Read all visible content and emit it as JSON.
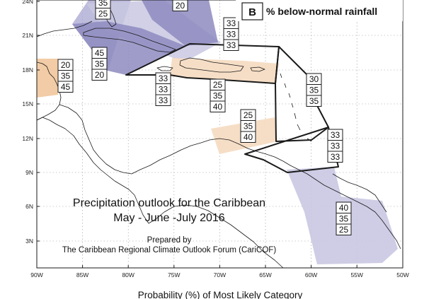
{
  "title": {
    "line1": "Precipitation outlook for the Caribbean",
    "line2": "May - June -July 2016"
  },
  "credit": {
    "line1": "Prepared by",
    "line2": "The Caribbean Regional Climate Outlook Forum (CariCOF)"
  },
  "legend": {
    "key": "B",
    "text": "% below-normal rainfall"
  },
  "bottom_label": "Probability (%) of Most Likely Category",
  "x_ticks": [
    "90W",
    "85W",
    "80W",
    "75W",
    "70W",
    "65W",
    "60W",
    "55W",
    "50W"
  ],
  "y_ticks": [
    "24N",
    "21N",
    "18N",
    "15N",
    "12N",
    "9N",
    "6N",
    "3N"
  ],
  "regions": [
    {
      "name": "region-gulf-yucatan",
      "values": [
        "35",
        "25"
      ]
    },
    {
      "name": "region-bahamas",
      "values": [
        "20"
      ]
    },
    {
      "name": "region-belize",
      "values": [
        "20",
        "35",
        "45"
      ]
    },
    {
      "name": "region-cuba-west",
      "values": [
        "45",
        "35",
        "20"
      ]
    },
    {
      "name": "region-jamaica",
      "values": [
        "33",
        "33",
        "33"
      ]
    },
    {
      "name": "region-north-antilles",
      "values": [
        "33",
        "33",
        "33"
      ]
    },
    {
      "name": "region-caribbean-sea",
      "values": [
        "25",
        "35",
        "40"
      ]
    },
    {
      "name": "region-leeward-islands",
      "values": [
        "30",
        "35",
        "35"
      ]
    },
    {
      "name": "region-south-caribbean",
      "values": [
        "25",
        "35",
        "40"
      ]
    },
    {
      "name": "region-trinidad",
      "values": [
        "33",
        "33",
        "33"
      ]
    },
    {
      "name": "region-guianas",
      "values": [
        "40",
        "35",
        "25"
      ]
    }
  ],
  "colors": {
    "dark_below": "#8e8bbf",
    "mid_below": "#a8a6d0",
    "light_below": "#c9c8e2",
    "above_normal": "#f1c79c",
    "above_light": "#f6dcc3"
  }
}
